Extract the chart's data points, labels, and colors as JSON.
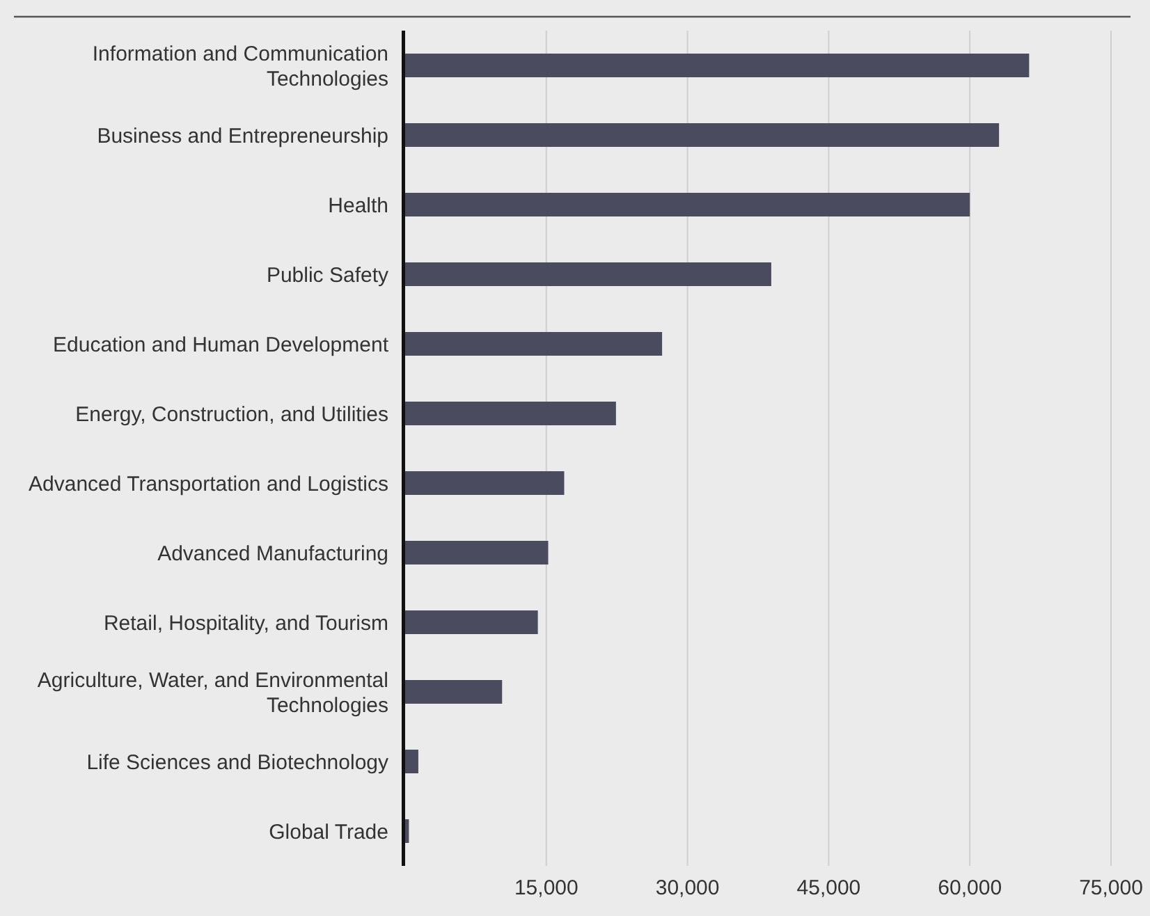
{
  "chart_data": {
    "type": "bar",
    "orientation": "horizontal",
    "categories": [
      "Information and Communication Technologies",
      "Business and Entrepreneurship",
      "Health",
      "Public Safety",
      "Education and Human Development",
      "Energy, Construction, and Utilities",
      "Advanced Transportation and Logistics",
      "Advanced Manufacturing",
      "Retail, Hospitality, and Tourism",
      "Agriculture, Water, and Environmental Technologies",
      "Life Sciences and Biotechnology",
      "Global Trade"
    ],
    "values": [
      66300,
      63100,
      60000,
      38900,
      27300,
      22400,
      16900,
      15200,
      14100,
      10300,
      1400,
      400
    ],
    "color": "#4b4b5f",
    "xlim": [
      0,
      75000
    ],
    "xticks": [
      {
        "value": 15000,
        "label": "15,000"
      },
      {
        "value": 30000,
        "label": "30,000"
      },
      {
        "value": 45000,
        "label": "45,000"
      },
      {
        "value": 60000,
        "label": "60,000"
      },
      {
        "value": 75000,
        "label": "75,000"
      }
    ],
    "grid": "x"
  }
}
